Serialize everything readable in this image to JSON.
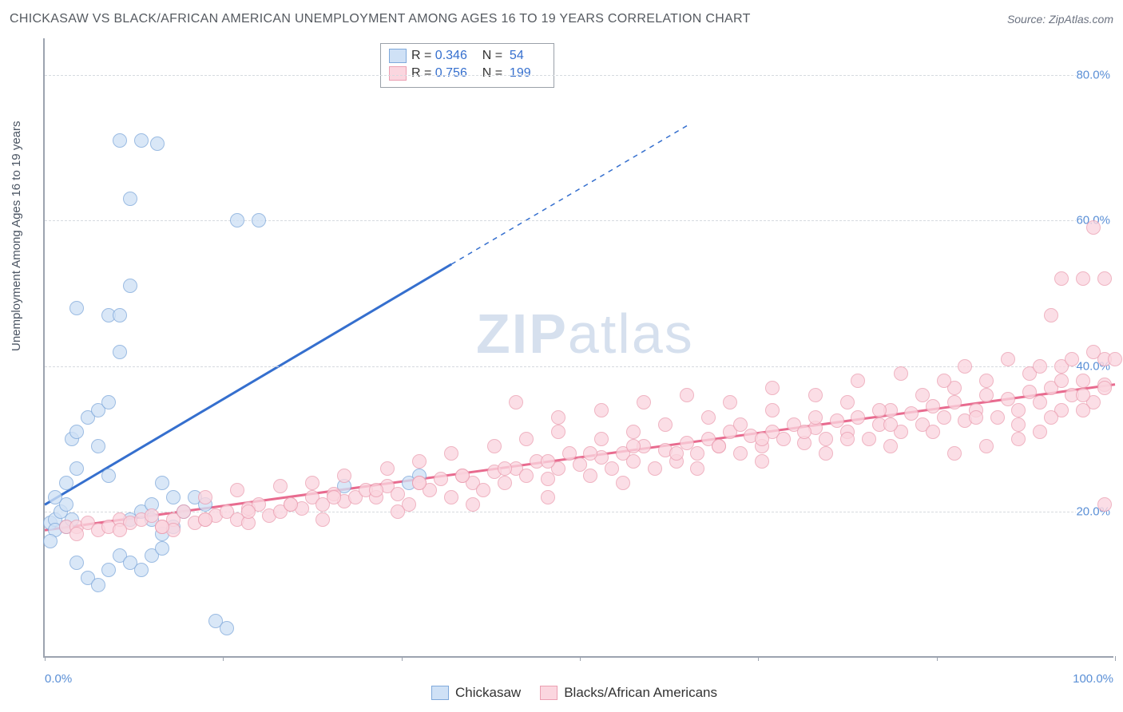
{
  "title": "CHICKASAW VS BLACK/AFRICAN AMERICAN UNEMPLOYMENT AMONG AGES 16 TO 19 YEARS CORRELATION CHART",
  "source": "Source: ZipAtlas.com",
  "ylabel": "Unemployment Among Ages 16 to 19 years",
  "watermark_plain": "ZIP",
  "watermark_light": "atlas",
  "chart": {
    "type": "scatter",
    "xlim": [
      0,
      100
    ],
    "ylim": [
      0,
      85
    ],
    "x_ticks": [
      0,
      16.67,
      33.33,
      50,
      66.67,
      83.33,
      100
    ],
    "x_tick_labels": {
      "0": "0.0%",
      "100": "100.0%"
    },
    "y_ticks": [
      20,
      40,
      60,
      80
    ],
    "y_tick_labels": [
      "20.0%",
      "40.0%",
      "60.0%",
      "80.0%"
    ],
    "grid_color": "#d6dadf",
    "axis_color": "#9ca3af",
    "background": "#ffffff",
    "marker_radius": 9,
    "series": [
      {
        "name": "Chickasaw",
        "fill": "#cfe1f6",
        "stroke": "#7fa9db",
        "line_color": "#356fce",
        "regression": {
          "x1": 0,
          "y1": 21,
          "x2": 38,
          "y2": 54,
          "dash_x2": 60,
          "dash_y2": 73
        },
        "stats": {
          "R": "0.346",
          "N": "54"
        },
        "points": [
          [
            0.5,
            18.5
          ],
          [
            1,
            19
          ],
          [
            1,
            17.5
          ],
          [
            1.5,
            20
          ],
          [
            2,
            18
          ],
          [
            2,
            21
          ],
          [
            1,
            22
          ],
          [
            2.5,
            19
          ],
          [
            0.5,
            16
          ],
          [
            3,
            13
          ],
          [
            4,
            11
          ],
          [
            5,
            10
          ],
          [
            6,
            12
          ],
          [
            7,
            14
          ],
          [
            8,
            13
          ],
          [
            9,
            12
          ],
          [
            10,
            14
          ],
          [
            11,
            15
          ],
          [
            2,
            24
          ],
          [
            3,
            26
          ],
          [
            2.5,
            30
          ],
          [
            3,
            31
          ],
          [
            4,
            33
          ],
          [
            5,
            34
          ],
          [
            6,
            35
          ],
          [
            5,
            29
          ],
          [
            6,
            25
          ],
          [
            7,
            71
          ],
          [
            9,
            71
          ],
          [
            10.5,
            70.5
          ],
          [
            8,
            63
          ],
          [
            6,
            47
          ],
          [
            7,
            47
          ],
          [
            8,
            51
          ],
          [
            7,
            42
          ],
          [
            3,
            48
          ],
          [
            18,
            60
          ],
          [
            20,
            60
          ],
          [
            11,
            24
          ],
          [
            12,
            22
          ],
          [
            13,
            20
          ],
          [
            14,
            22
          ],
          [
            15,
            21
          ],
          [
            11,
            17
          ],
          [
            12,
            18
          ],
          [
            10,
            19
          ],
          [
            16,
            5
          ],
          [
            17,
            4
          ],
          [
            35,
            25
          ],
          [
            34,
            24
          ],
          [
            28,
            23.5
          ],
          [
            8,
            19
          ],
          [
            9,
            20
          ],
          [
            10,
            21
          ]
        ]
      },
      {
        "name": "Blacks/African Americans",
        "fill": "#fbd6df",
        "stroke": "#eb9fb2",
        "line_color": "#e86b8f",
        "regression": {
          "x1": 0,
          "y1": 17.5,
          "x2": 100,
          "y2": 37.5
        },
        "stats": {
          "R": "0.756",
          "N": "199"
        },
        "points": [
          [
            2,
            18
          ],
          [
            3,
            18
          ],
          [
            4,
            18.5
          ],
          [
            5,
            17.5
          ],
          [
            6,
            18
          ],
          [
            7,
            19
          ],
          [
            8,
            18.5
          ],
          [
            9,
            19
          ],
          [
            10,
            19.5
          ],
          [
            11,
            18
          ],
          [
            12,
            19
          ],
          [
            13,
            20
          ],
          [
            14,
            18.5
          ],
          [
            15,
            19
          ],
          [
            16,
            19.5
          ],
          [
            17,
            20
          ],
          [
            18,
            19
          ],
          [
            19,
            20.5
          ],
          [
            20,
            21
          ],
          [
            21,
            19.5
          ],
          [
            22,
            20
          ],
          [
            23,
            21
          ],
          [
            24,
            20.5
          ],
          [
            25,
            22
          ],
          [
            26,
            21
          ],
          [
            27,
            22.5
          ],
          [
            28,
            21.5
          ],
          [
            29,
            22
          ],
          [
            30,
            23
          ],
          [
            31,
            22
          ],
          [
            32,
            23.5
          ],
          [
            33,
            22.5
          ],
          [
            34,
            21
          ],
          [
            35,
            24
          ],
          [
            36,
            23
          ],
          [
            37,
            24.5
          ],
          [
            38,
            22
          ],
          [
            39,
            25
          ],
          [
            40,
            24
          ],
          [
            41,
            23
          ],
          [
            42,
            25.5
          ],
          [
            43,
            24
          ],
          [
            44,
            26
          ],
          [
            45,
            25
          ],
          [
            46,
            27
          ],
          [
            47,
            24.5
          ],
          [
            48,
            26
          ],
          [
            49,
            28
          ],
          [
            50,
            26.5
          ],
          [
            51,
            25
          ],
          [
            52,
            27.5
          ],
          [
            53,
            26
          ],
          [
            54,
            28
          ],
          [
            55,
            27
          ],
          [
            56,
            29
          ],
          [
            57,
            26
          ],
          [
            58,
            28.5
          ],
          [
            59,
            27
          ],
          [
            60,
            29.5
          ],
          [
            61,
            28
          ],
          [
            62,
            30
          ],
          [
            63,
            29
          ],
          [
            64,
            31
          ],
          [
            65,
            28
          ],
          [
            66,
            30.5
          ],
          [
            67,
            29
          ],
          [
            68,
            31
          ],
          [
            69,
            30
          ],
          [
            70,
            32
          ],
          [
            71,
            29.5
          ],
          [
            72,
            31.5
          ],
          [
            73,
            30
          ],
          [
            74,
            32.5
          ],
          [
            75,
            31
          ],
          [
            76,
            33
          ],
          [
            77,
            30
          ],
          [
            78,
            32
          ],
          [
            79,
            34
          ],
          [
            80,
            31
          ],
          [
            81,
            33.5
          ],
          [
            82,
            32
          ],
          [
            83,
            34.5
          ],
          [
            84,
            33
          ],
          [
            85,
            35
          ],
          [
            86,
            32.5
          ],
          [
            87,
            34
          ],
          [
            88,
            36
          ],
          [
            89,
            33
          ],
          [
            90,
            35.5
          ],
          [
            91,
            34
          ],
          [
            92,
            36.5
          ],
          [
            93,
            35
          ],
          [
            94,
            37
          ],
          [
            95,
            34
          ],
          [
            96,
            36
          ],
          [
            97,
            38
          ],
          [
            98,
            35
          ],
          [
            99,
            37.5
          ],
          [
            15,
            22
          ],
          [
            18,
            23
          ],
          [
            22,
            23.5
          ],
          [
            25,
            24
          ],
          [
            28,
            25
          ],
          [
            32,
            26
          ],
          [
            35,
            27
          ],
          [
            38,
            28
          ],
          [
            42,
            29
          ],
          [
            45,
            30
          ],
          [
            48,
            31
          ],
          [
            52,
            30
          ],
          [
            55,
            31
          ],
          [
            58,
            32
          ],
          [
            62,
            33
          ],
          [
            65,
            32
          ],
          [
            68,
            34
          ],
          [
            72,
            33
          ],
          [
            75,
            35
          ],
          [
            78,
            34
          ],
          [
            82,
            36
          ],
          [
            85,
            37
          ],
          [
            88,
            38
          ],
          [
            92,
            39
          ],
          [
            95,
            40
          ],
          [
            96,
            41
          ],
          [
            98,
            42
          ],
          [
            44,
            35
          ],
          [
            48,
            33
          ],
          [
            52,
            34
          ],
          [
            56,
            35
          ],
          [
            60,
            36
          ],
          [
            64,
            35
          ],
          [
            68,
            37
          ],
          [
            72,
            36
          ],
          [
            76,
            38
          ],
          [
            80,
            39
          ],
          [
            84,
            38
          ],
          [
            86,
            40
          ],
          [
            90,
            41
          ],
          [
            93,
            40
          ],
          [
            95,
            38
          ],
          [
            97,
            36
          ],
          [
            91,
            30
          ],
          [
            93,
            31
          ],
          [
            85,
            28
          ],
          [
            88,
            29
          ],
          [
            79,
            29
          ],
          [
            73,
            28
          ],
          [
            67,
            27
          ],
          [
            61,
            26
          ],
          [
            54,
            24
          ],
          [
            47,
            22
          ],
          [
            40,
            21
          ],
          [
            33,
            20
          ],
          [
            26,
            19
          ],
          [
            19,
            18.5
          ],
          [
            12,
            17.5
          ],
          [
            97,
            52
          ],
          [
            99,
            52
          ],
          [
            95,
            52
          ],
          [
            94,
            47
          ],
          [
            98,
            59
          ],
          [
            99,
            41
          ],
          [
            100,
            41
          ],
          [
            99,
            21
          ],
          [
            99,
            37
          ],
          [
            97,
            34
          ],
          [
            94,
            33
          ],
          [
            91,
            32
          ],
          [
            87,
            33
          ],
          [
            83,
            31
          ],
          [
            79,
            32
          ],
          [
            75,
            30
          ],
          [
            71,
            31
          ],
          [
            67,
            30
          ],
          [
            63,
            29
          ],
          [
            59,
            28
          ],
          [
            55,
            29
          ],
          [
            51,
            28
          ],
          [
            47,
            27
          ],
          [
            43,
            26
          ],
          [
            39,
            25
          ],
          [
            35,
            24
          ],
          [
            31,
            23
          ],
          [
            27,
            22
          ],
          [
            23,
            21
          ],
          [
            19,
            20
          ],
          [
            15,
            19
          ],
          [
            11,
            18
          ],
          [
            7,
            17.5
          ],
          [
            3,
            17
          ]
        ]
      }
    ]
  },
  "legend": {
    "items": [
      {
        "label": "Chickasaw",
        "fill": "#cfe1f6",
        "stroke": "#7fa9db"
      },
      {
        "label": "Blacks/African Americans",
        "fill": "#fbd6df",
        "stroke": "#eb9fb2"
      }
    ]
  }
}
